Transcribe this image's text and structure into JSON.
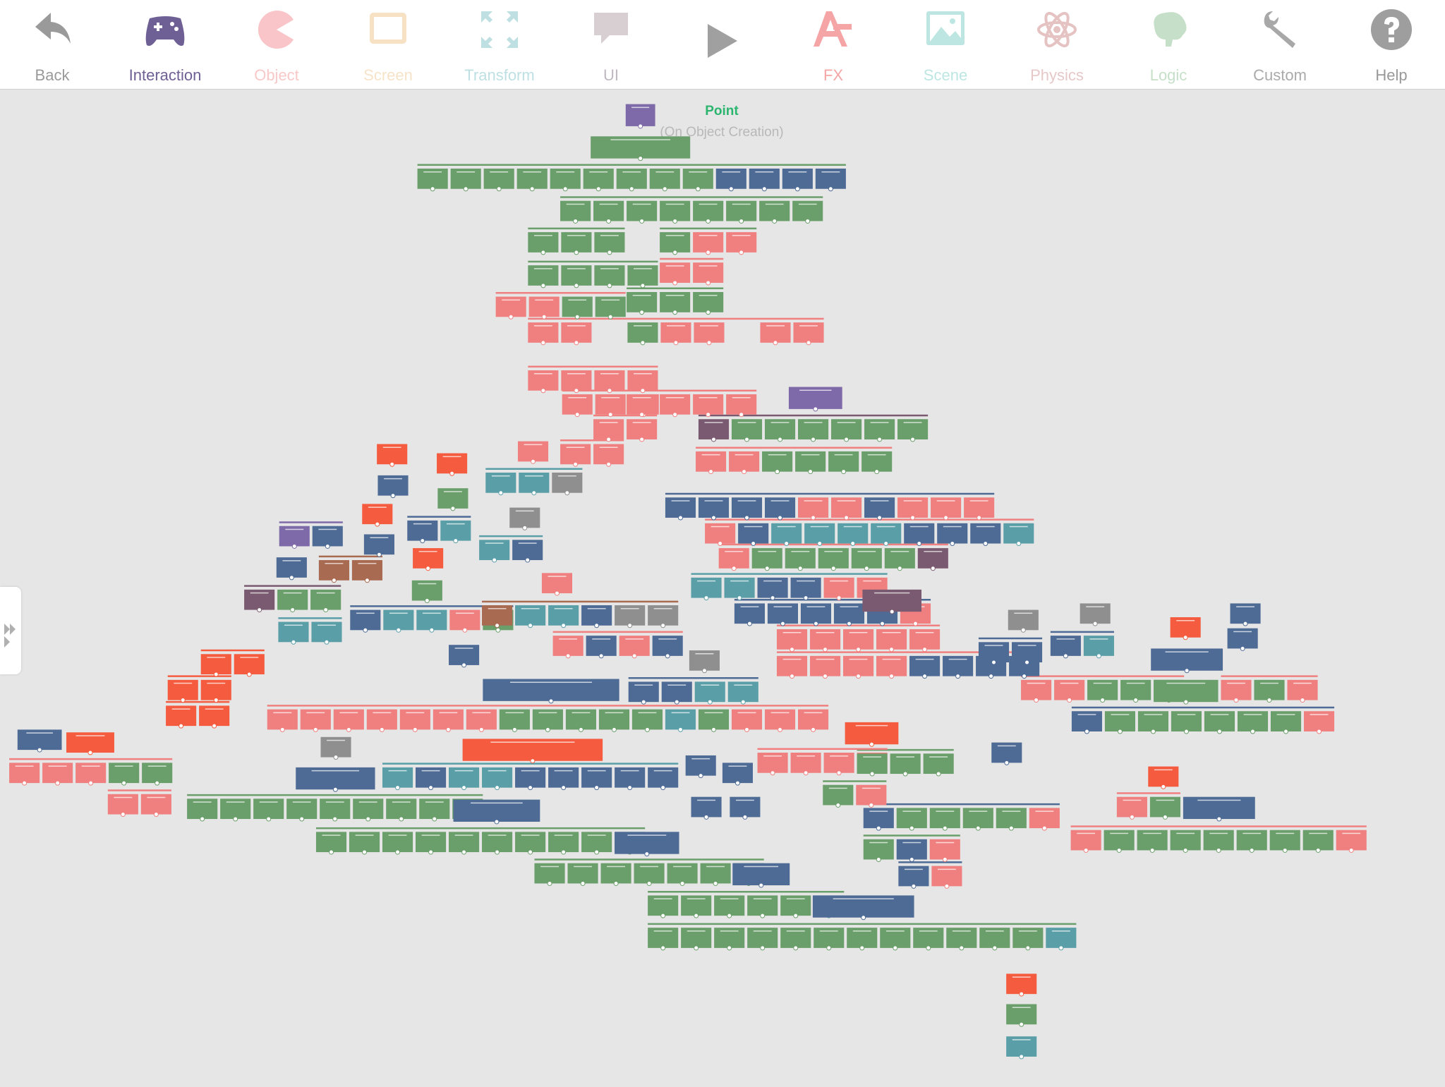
{
  "toolbar": {
    "items": [
      {
        "label": "Back"
      },
      {
        "label": "Interaction"
      },
      {
        "label": "Object"
      },
      {
        "label": "Screen"
      },
      {
        "label": "Transform"
      },
      {
        "label": "UI"
      },
      {
        "label": "FX"
      },
      {
        "label": "Scene"
      },
      {
        "label": "Physics"
      },
      {
        "label": "Logic"
      },
      {
        "label": "Custom"
      },
      {
        "label": "Help"
      }
    ]
  },
  "canvas": {
    "title": "Point",
    "subtitle": "(On Object Creation)"
  }
}
